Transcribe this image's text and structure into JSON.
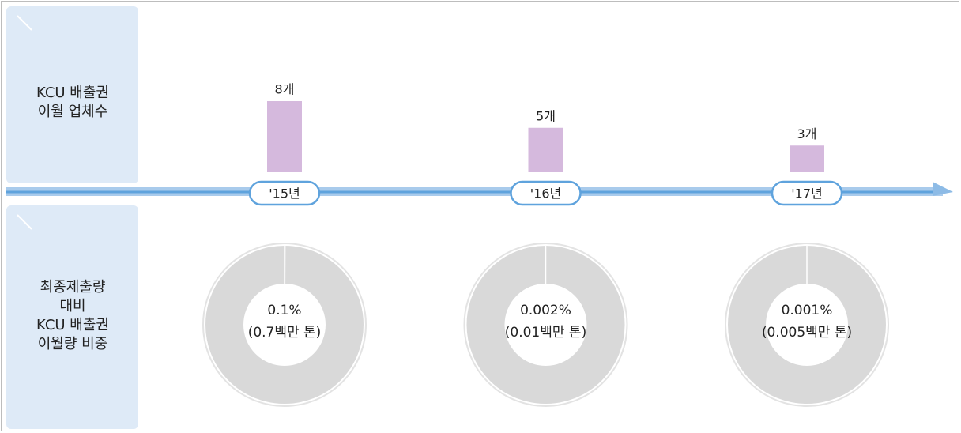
{
  "chart_data": [
    {
      "type": "bar",
      "title": [
        "KCU 배출권",
        "이월 업체수"
      ],
      "categories": [
        "'15년",
        "'16년",
        "'17년"
      ],
      "values": [
        8,
        5,
        3
      ],
      "value_labels": [
        "8개",
        "5개",
        "3개"
      ],
      "color": "#d5b9dd"
    },
    {
      "type": "donut",
      "title": [
        "최종제출량",
        "대비",
        "KCU 배출권",
        "이월량 비중"
      ],
      "values": [
        0.1,
        0.002,
        0.001
      ],
      "value_labels": [
        "0.1%",
        "0.002%",
        "0.001%"
      ],
      "amount_labels": [
        "(0.7백만 톤)",
        "(0.01백만 톤)",
        "(0.005백만 톤)"
      ],
      "color": "#d5b9dd"
    }
  ]
}
